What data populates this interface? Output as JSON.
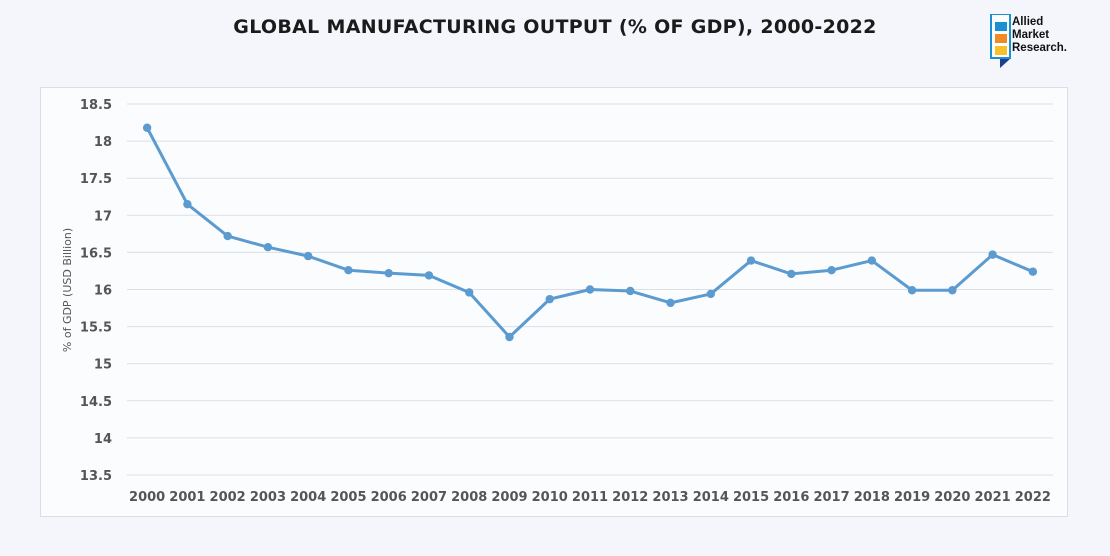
{
  "header": {
    "title": "GLOBAL MANUFACTURING OUTPUT (% OF GDP), 2000-2022"
  },
  "logo": {
    "line1": "Allied",
    "line2": "Market",
    "line3": "Research.",
    "colors": [
      "#1a8fd1",
      "#f08a24",
      "#f6c12a",
      "#1a3f8f"
    ]
  },
  "colors": {
    "line": "#5b9bd0",
    "grid": "#dcdfe6",
    "text": "#555555"
  },
  "chart_data": {
    "type": "line",
    "title": "GLOBAL MANUFACTURING OUTPUT (% OF GDP), 2000-2022",
    "xlabel": "",
    "ylabel": "% of GDP (USD Billion)",
    "ylim": [
      13.5,
      18.5
    ],
    "yticks": [
      "13.5",
      "14",
      "14.5",
      "15",
      "15.5",
      "16",
      "16.5",
      "17",
      "17.5",
      "18",
      "18.5"
    ],
    "yticks_values": [
      13.5,
      14,
      14.5,
      15,
      15.5,
      16,
      16.5,
      17,
      17.5,
      18,
      18.5
    ],
    "grid": true,
    "legend": "none",
    "categories": [
      "2000",
      "2001",
      "2002",
      "2003",
      "2004",
      "2005",
      "2006",
      "2007",
      "2008",
      "2009",
      "2010",
      "2011",
      "2012",
      "2013",
      "2014",
      "2015",
      "2016",
      "2017",
      "2018",
      "2019",
      "2020",
      "2021",
      "2022"
    ],
    "series": [
      {
        "name": "Manufacturing output (% of GDP)",
        "values": [
          18.18,
          17.15,
          16.72,
          16.57,
          16.45,
          16.26,
          16.22,
          16.19,
          15.96,
          15.36,
          15.87,
          16.0,
          15.98,
          15.82,
          15.94,
          16.39,
          16.21,
          16.26,
          16.39,
          15.99,
          15.99,
          16.47,
          16.24
        ]
      }
    ]
  }
}
